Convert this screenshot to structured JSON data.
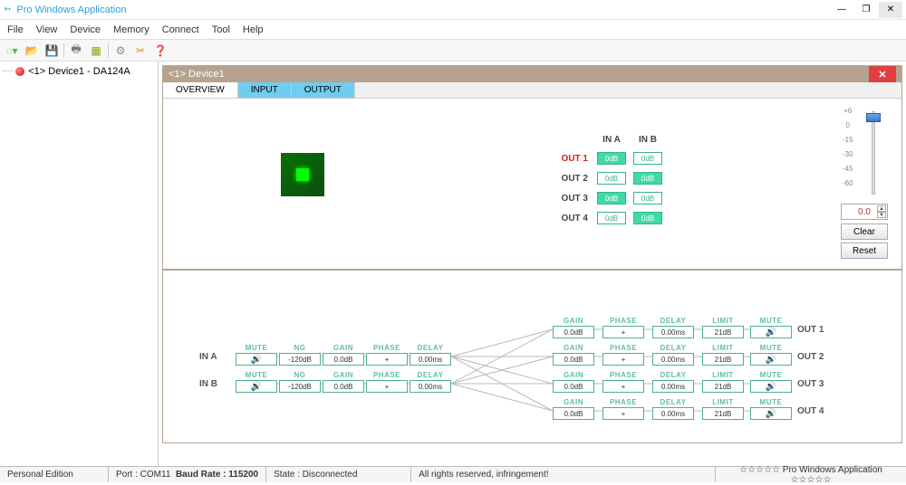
{
  "app": {
    "title": "Pro Windows Application"
  },
  "menu": [
    "File",
    "View",
    "Device",
    "Memory",
    "Connect",
    "Tool",
    "Help"
  ],
  "tree": {
    "node": "<1> Device1 - DA124A"
  },
  "device": {
    "header": "<1> Device1"
  },
  "tabs": {
    "overview": "OVERVIEW",
    "input": "INPUT",
    "output": "OUTPUT"
  },
  "matrix": {
    "cols": [
      "IN A",
      "IN B"
    ],
    "rows": [
      {
        "label": "OUT 1",
        "hot": true,
        "cells": [
          {
            "v": "0dB",
            "on": true
          },
          {
            "v": "0dB",
            "on": false
          }
        ]
      },
      {
        "label": "OUT 2",
        "hot": false,
        "cells": [
          {
            "v": "0dB",
            "on": false
          },
          {
            "v": "0dB",
            "on": true
          }
        ]
      },
      {
        "label": "OUT 3",
        "hot": false,
        "cells": [
          {
            "v": "0dB",
            "on": true
          },
          {
            "v": "0dB",
            "on": false
          }
        ]
      },
      {
        "label": "OUT 4",
        "hot": false,
        "cells": [
          {
            "v": "0dB",
            "on": false
          },
          {
            "v": "0dB",
            "on": true
          }
        ]
      }
    ]
  },
  "fader": {
    "ticks": [
      "+6",
      "0",
      "-15",
      "-30",
      "-45",
      "-60"
    ],
    "value": "0.0",
    "clear": "Clear",
    "reset": "Reset"
  },
  "flow": {
    "in": [
      "IN A",
      "IN B"
    ],
    "out": [
      "OUT 1",
      "OUT 2",
      "OUT 3",
      "OUT 4"
    ],
    "inStages": {
      "mute": "MUTE",
      "ng": "NG",
      "ngv": "-120dB",
      "gain": "GAIN",
      "gainv": "0.0dB",
      "phase": "PHASE",
      "phasev": "+",
      "delay": "DELAY",
      "delayv": "0.00ms"
    },
    "outStages": {
      "gain": "GAIN",
      "gainv": "0.0dB",
      "phase": "PHASE",
      "phasev": "+",
      "delay": "DELAY",
      "delayv": "0.00ms",
      "limit": "LIMIT",
      "limitv": "21dB",
      "mute": "MUTE"
    }
  },
  "status": {
    "edition": "Personal Edition",
    "port": "Port : COM11",
    "baud": "Baud Rate : 115200",
    "state": "State : Disconnected",
    "rights": "All rights reserved, infringement!",
    "brand": "☆☆☆☆☆ Pro Windows Application ☆☆☆☆☆"
  },
  "colors": {
    "accent": "#3edba8",
    "accentBorder": "#4fb090",
    "tabActive": "#6fcdf0",
    "frame": "#b5a593",
    "headerBg": "#b6a28e",
    "close": "#e04040",
    "titleText": "#2ea0d6"
  }
}
